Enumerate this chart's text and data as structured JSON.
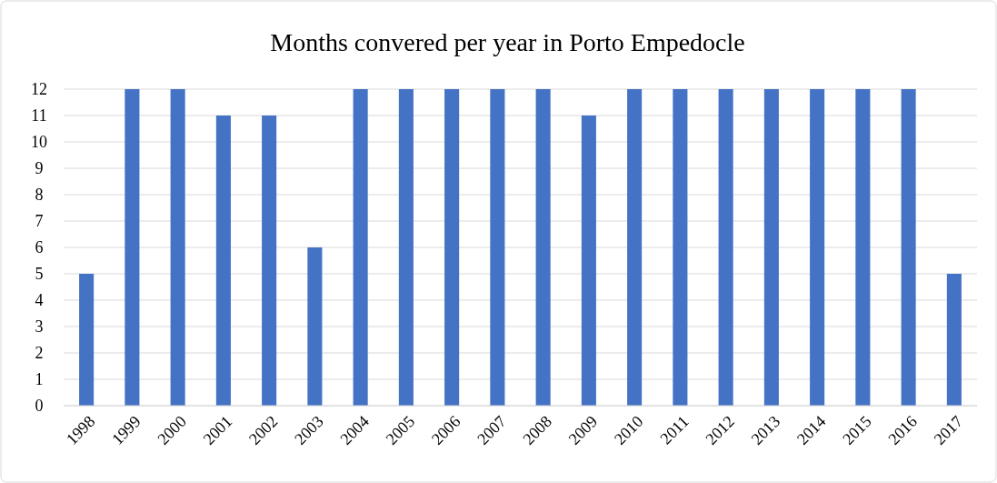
{
  "chart_data": {
    "type": "bar",
    "title": "Months convered per year in Porto Empedocle",
    "categories": [
      "1998",
      "1999",
      "2000",
      "2001",
      "2002",
      "2003",
      "2004",
      "2005",
      "2006",
      "2007",
      "2008",
      "2009",
      "2010",
      "2011",
      "2012",
      "2013",
      "2014",
      "2015",
      "2016",
      "2017"
    ],
    "values": [
      5,
      12,
      12,
      11,
      11,
      6,
      12,
      12,
      12,
      12,
      12,
      11,
      12,
      12,
      12,
      12,
      12,
      12,
      12,
      5
    ],
    "color": "#4472c4",
    "ylim": [
      0,
      12
    ],
    "yticks": [
      0,
      1,
      2,
      3,
      4,
      5,
      6,
      7,
      8,
      9,
      10,
      11,
      12
    ],
    "grid": "y"
  }
}
